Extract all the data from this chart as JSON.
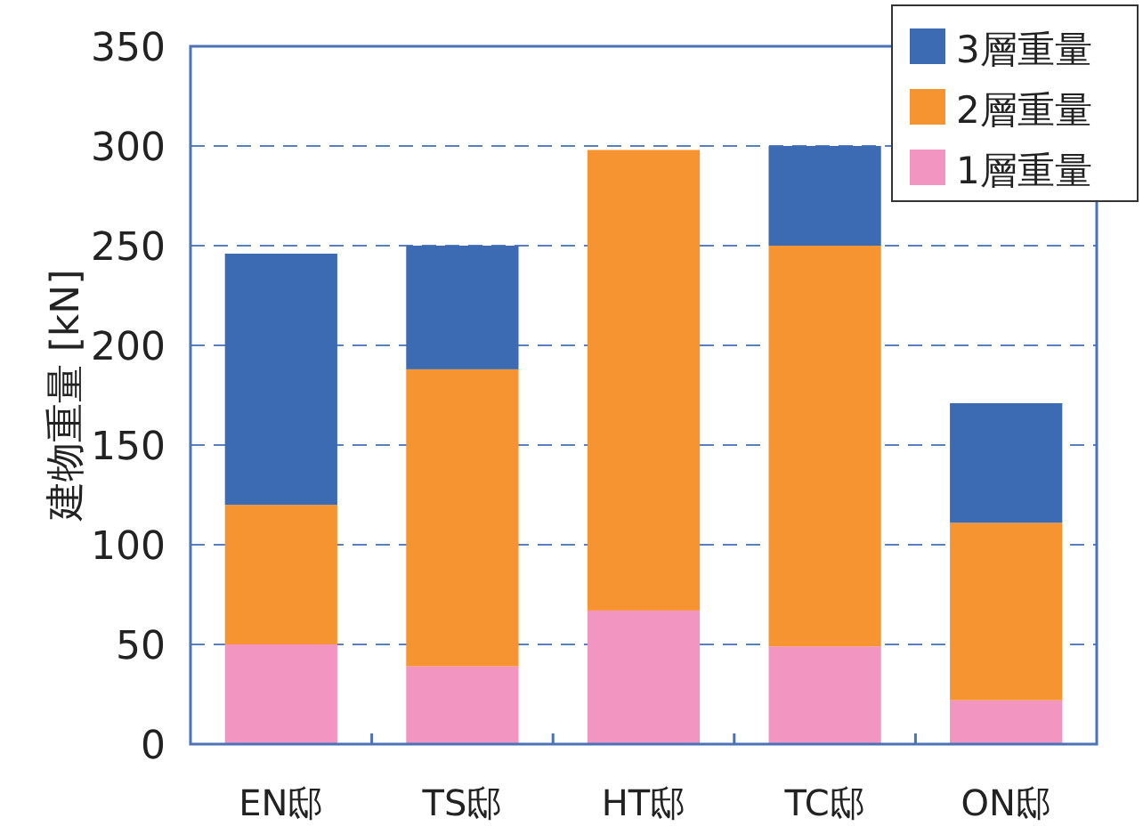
{
  "chart_data": {
    "type": "bar",
    "stacked": true,
    "ylabel": "建物重量 [kN]",
    "categories": [
      "EN邸",
      "TS邸",
      "HT邸",
      "TC邸",
      "ON邸"
    ],
    "series": [
      {
        "name": "1層重量",
        "color": "#f295c0",
        "values": [
          50,
          39,
          67,
          49,
          22
        ]
      },
      {
        "name": "2層重量",
        "color": "#f79432",
        "values": [
          70,
          149,
          231,
          201,
          89
        ]
      },
      {
        "name": "3層重量",
        "color": "#3c6bb3",
        "values": [
          126,
          62,
          null,
          50,
          60
        ]
      }
    ],
    "ylim": [
      0,
      350
    ],
    "yticks": [
      0,
      50,
      100,
      150,
      200,
      250,
      300,
      350
    ],
    "grid": "y",
    "legend": "top right"
  }
}
